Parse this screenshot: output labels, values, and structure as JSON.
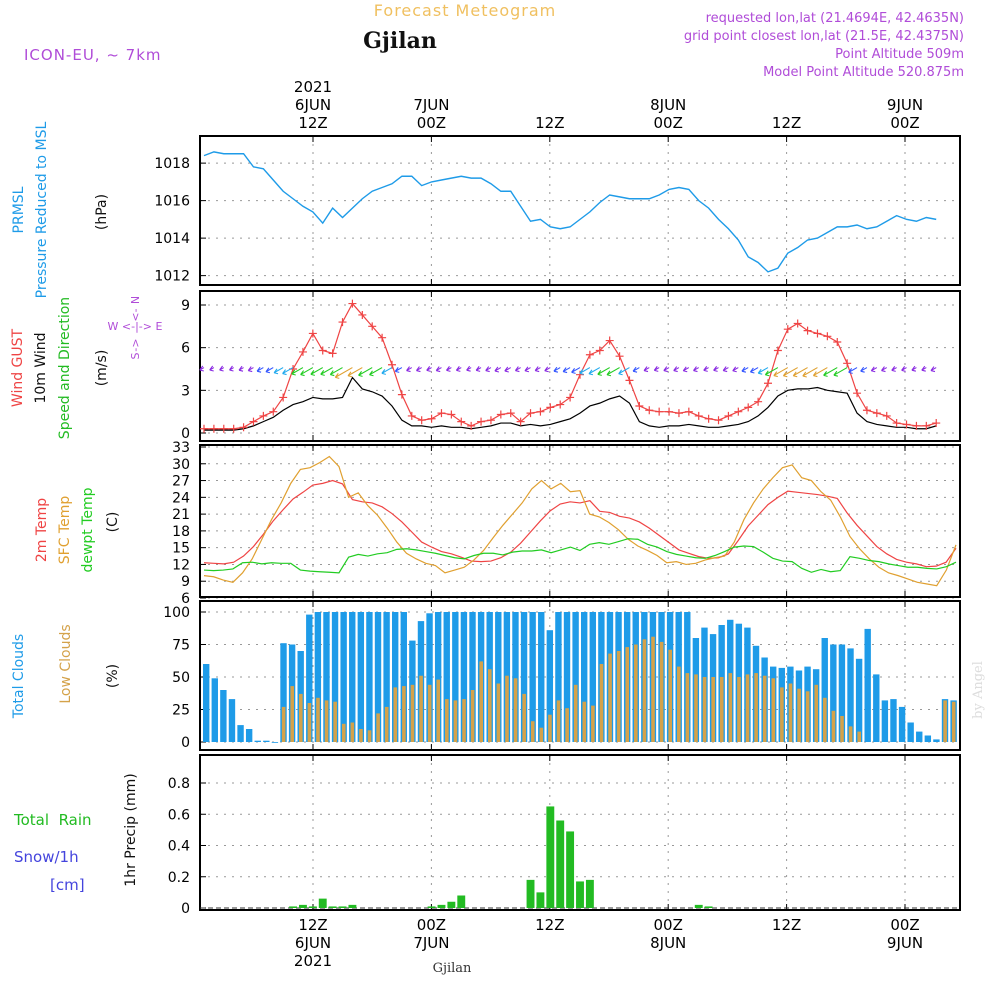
{
  "header": {
    "app_title": "Forecast Meteogram",
    "location": "Gjilan",
    "model": "ICON-EU, ~ 7km",
    "requested": "requested lon,lat (21.4694E, 42.4635N)",
    "grid_point": "grid point closest lon,lat (21.5E, 42.4375N)",
    "point_alt": "Point Altitude 509m",
    "model_alt": "Model Point Altitude 520.875m",
    "footer_location": "Gjilan",
    "watermark": "by Angel"
  },
  "colors": {
    "pressure": "#1e9be8",
    "gust": "#ef4444",
    "wind": "#000000",
    "wind_dir": "#22bb22",
    "temp2m": "#ef4444",
    "sfc": "#e0a030",
    "dewpt": "#22cc22",
    "total_clouds": "#1e9be8",
    "low_clouds": "#d4a24a",
    "rain": "#22bb22",
    "snow": "#4444dd",
    "header_purple": "#b04cd8",
    "title_orange": "#f0c060"
  },
  "time_axis": {
    "top_ticks": [
      {
        "i": 10,
        "l1": "2021",
        "l2": "6JUN",
        "l3": "12Z"
      },
      {
        "i": 22,
        "l1": "",
        "l2": "7JUN",
        "l3": "00Z"
      },
      {
        "i": 34,
        "l1": "",
        "l2": "",
        "l3": "12Z"
      },
      {
        "i": 46,
        "l1": "",
        "l2": "8JUN",
        "l3": "00Z"
      },
      {
        "i": 58,
        "l1": "",
        "l2": "",
        "l3": "12Z"
      },
      {
        "i": 70,
        "l1": "",
        "l2": "9JUN",
        "l3": "00Z"
      }
    ],
    "bottom_ticks": [
      {
        "i": 10,
        "l1": "12Z",
        "l2": "6JUN",
        "l3": "2021"
      },
      {
        "i": 22,
        "l1": "00Z",
        "l2": "7JUN",
        "l3": ""
      },
      {
        "i": 34,
        "l1": "12Z",
        "l2": "",
        "l3": ""
      },
      {
        "i": 46,
        "l1": "00Z",
        "l2": "8JUN",
        "l3": ""
      },
      {
        "i": 58,
        "l1": "12Z",
        "l2": "",
        "l3": ""
      },
      {
        "i": 70,
        "l1": "00Z",
        "l2": "9JUN",
        "l3": ""
      }
    ]
  },
  "panel_labels": {
    "pressure": {
      "l1": "PRMSL",
      "l2": "Pressure Reduced to MSL",
      "unit": "(hPa)"
    },
    "wind": {
      "gust": "Wind GUST",
      "wind": "10m Wind",
      "dir": "Speed and Direction",
      "unit": "(m/s)",
      "compass_n": "N",
      "compass_s": "S",
      "compass_we": "W <-|-> E",
      "compass_up": "<-",
      "compass_down": "->"
    },
    "temp": {
      "t2m": "2m Temp",
      "sfc": "SFC Temp",
      "dew": "dewpt Temp",
      "unit": "(C)"
    },
    "clouds": {
      "total": "Total Clouds",
      "low": "Low Clouds",
      "unit": "(%)"
    },
    "precip": {
      "rain_label": "Total  Rain",
      "snow_label": "Snow/1h",
      "snow_unit": "[cm]",
      "ylabel": "1hr Precip (mm)"
    }
  },
  "chart_data": [
    {
      "type": "line",
      "name": "pressure",
      "title": "PRMSL Pressure Reduced to MSL",
      "ylabel": "(hPa)",
      "ylim": [
        1011.5,
        1019.5
      ],
      "yticks": [
        1012,
        1014,
        1016,
        1018
      ],
      "x_start": "2021-06-06 00Z",
      "x_step_hours": 1,
      "series": [
        {
          "name": "PRMSL",
          "values": [
            1018.4,
            1018.6,
            1018.5,
            1018.5,
            1018.5,
            1017.8,
            1017.7,
            1017.1,
            1016.5,
            1016.1,
            1015.7,
            1015.4,
            1014.8,
            1015.6,
            1015.1,
            1015.6,
            1016.1,
            1016.5,
            1016.7,
            1016.9,
            1017.3,
            1017.3,
            1016.8,
            1017.0,
            1017.1,
            1017.2,
            1017.3,
            1017.2,
            1017.2,
            1016.9,
            1016.5,
            1016.5,
            1015.7,
            1014.9,
            1015.0,
            1014.6,
            1014.5,
            1014.6,
            1015.0,
            1015.4,
            1015.9,
            1016.3,
            1016.2,
            1016.1,
            1016.1,
            1016.1,
            1016.3,
            1016.6,
            1016.7,
            1016.6,
            1016.0,
            1015.6,
            1015.0,
            1014.5,
            1013.9,
            1013.0,
            1012.7,
            1012.2,
            1012.4,
            1013.2,
            1013.5,
            1013.9,
            1014.0,
            1014.3,
            1014.6,
            1014.6,
            1014.7,
            1014.5,
            1014.6,
            1014.9,
            1015.2,
            1015.0,
            1014.9,
            1015.1,
            1015.0
          ]
        }
      ]
    },
    {
      "type": "line",
      "name": "wind",
      "title": "Wind GUST / 10m Wind Speed and Direction",
      "ylabel": "(m/s)",
      "ylim": [
        0,
        10
      ],
      "yticks": [
        0,
        3,
        6,
        9
      ],
      "series": [
        {
          "name": "Wind GUST",
          "values": [
            0.3,
            0.3,
            0.3,
            0.3,
            0.4,
            0.8,
            1.2,
            1.5,
            2.5,
            4.5,
            5.7,
            7.0,
            5.8,
            5.6,
            7.8,
            9.1,
            8.3,
            7.5,
            6.7,
            4.8,
            2.7,
            1.2,
            0.9,
            1.0,
            1.4,
            1.3,
            0.8,
            0.5,
            0.8,
            0.9,
            1.3,
            1.4,
            0.8,
            1.4,
            1.5,
            1.8,
            2.0,
            2.5,
            4.1,
            5.5,
            5.8,
            6.5,
            5.4,
            3.7,
            1.9,
            1.6,
            1.5,
            1.5,
            1.4,
            1.5,
            1.2,
            1.0,
            0.9,
            1.2,
            1.5,
            1.8,
            2.2,
            3.5,
            5.8,
            7.3,
            7.7,
            7.2,
            7.0,
            6.8,
            6.4,
            4.9,
            2.8,
            1.6,
            1.4,
            1.2,
            0.7,
            0.6,
            0.5,
            0.5,
            0.7
          ]
        },
        {
          "name": "10m Wind",
          "values": [
            0.2,
            0.2,
            0.2,
            0.2,
            0.3,
            0.5,
            0.8,
            1.1,
            1.6,
            2.0,
            2.2,
            2.5,
            2.4,
            2.4,
            2.5,
            3.9,
            3.1,
            2.9,
            2.6,
            1.9,
            0.9,
            0.5,
            0.5,
            0.4,
            0.5,
            0.4,
            0.4,
            0.3,
            0.4,
            0.5,
            0.7,
            0.7,
            0.5,
            0.6,
            0.5,
            0.6,
            0.8,
            1.0,
            1.4,
            1.9,
            2.1,
            2.4,
            2.6,
            2.1,
            0.8,
            0.5,
            0.4,
            0.5,
            0.5,
            0.6,
            0.5,
            0.4,
            0.4,
            0.5,
            0.6,
            0.8,
            1.2,
            1.8,
            2.6,
            3.0,
            3.1,
            3.1,
            3.2,
            3.0,
            2.9,
            2.8,
            1.4,
            0.8,
            0.6,
            0.5,
            0.4,
            0.4,
            0.3,
            0.3,
            0.5
          ]
        }
      ]
    },
    {
      "type": "line",
      "name": "temperature",
      "title": "2m Temp / SFC Temp / dewpt Temp",
      "ylabel": "(C)",
      "ylim": [
        6,
        33
      ],
      "yticks": [
        6,
        9,
        12,
        15,
        18,
        21,
        24,
        27,
        30,
        33
      ],
      "series": [
        {
          "name": "2m Temp",
          "values": [
            12.3,
            12.2,
            12.1,
            12.4,
            13.5,
            15.2,
            17.4,
            19.8,
            21.8,
            23.7,
            24.9,
            26.2,
            26.5,
            27.0,
            26.4,
            23.6,
            23.2,
            23.0,
            22.3,
            21.1,
            19.6,
            17.8,
            16.0,
            15.1,
            14.3,
            13.9,
            13.3,
            12.6,
            12.5,
            12.6,
            13.2,
            14.2,
            15.8,
            17.8,
            19.8,
            21.6,
            22.8,
            23.2,
            23.0,
            23.4,
            21.5,
            21.3,
            20.6,
            20.3,
            19.6,
            18.5,
            17.2,
            15.9,
            14.6,
            14.0,
            13.4,
            13.1,
            13.2,
            13.9,
            16.3,
            18.9,
            20.8,
            22.7,
            24.0,
            25.1,
            24.9,
            24.7,
            24.5,
            24.2,
            23.8,
            21.2,
            19.0,
            17.1,
            15.2,
            13.9,
            12.9,
            12.4,
            12.1,
            11.6,
            11.7,
            12.4,
            14.9
          ]
        },
        {
          "name": "SFC Temp",
          "values": [
            10.0,
            9.8,
            9.2,
            8.8,
            10.5,
            13.0,
            16.5,
            20.0,
            23.0,
            26.5,
            29.0,
            29.3,
            30.2,
            31.3,
            29.5,
            24.0,
            24.8,
            22.5,
            20.8,
            18.5,
            16.0,
            14.0,
            13.0,
            12.2,
            11.8,
            10.5,
            11.0,
            11.5,
            12.8,
            14.5,
            16.8,
            19.0,
            21.0,
            23.0,
            25.5,
            27.0,
            25.5,
            26.5,
            25.0,
            25.2,
            21.0,
            20.5,
            19.5,
            18.2,
            16.5,
            15.3,
            14.5,
            13.6,
            12.3,
            12.5,
            12.0,
            12.2,
            12.8,
            13.2,
            13.5,
            16.0,
            20.0,
            23.0,
            25.5,
            27.5,
            29.3,
            29.8,
            27.5,
            27.0,
            25.0,
            23.5,
            20.5,
            17.0,
            14.8,
            13.0,
            11.5,
            10.5,
            10.0,
            9.4,
            8.8,
            8.5,
            8.2,
            11.0,
            15.5
          ]
        },
        {
          "name": "dewpt Temp",
          "values": [
            11.0,
            10.9,
            11.0,
            11.2,
            12.3,
            12.4,
            12.1,
            12.3,
            12.2,
            12.2,
            11.0,
            10.8,
            10.7,
            10.6,
            10.5,
            13.3,
            13.8,
            13.5,
            13.9,
            14.1,
            14.7,
            14.8,
            14.6,
            14.3,
            14.0,
            13.6,
            13.2,
            13.0,
            13.6,
            14.0,
            14.0,
            13.7,
            14.2,
            14.4,
            14.4,
            14.6,
            14.1,
            14.6,
            15.1,
            14.5,
            15.6,
            15.9,
            15.6,
            16.1,
            16.6,
            16.5,
            15.6,
            15.1,
            14.3,
            13.8,
            13.5,
            13.2,
            13.1,
            13.6,
            14.3,
            15.1,
            15.3,
            15.2,
            14.2,
            13.1,
            12.6,
            12.5,
            11.3,
            10.6,
            11.1,
            10.7,
            10.9,
            13.4,
            13.1,
            12.7,
            12.5,
            12.1,
            11.8,
            11.5,
            11.5,
            11.3,
            11.2,
            11.6,
            12.4
          ]
        }
      ]
    },
    {
      "type": "bar",
      "name": "clouds",
      "title": "Total Clouds / Low Clouds",
      "ylabel": "(%)",
      "ylim": [
        0,
        100
      ],
      "yticks": [
        0,
        25,
        50,
        75,
        100
      ],
      "series": [
        {
          "name": "Total Clouds",
          "values": [
            60,
            49,
            40,
            33,
            13,
            10,
            1,
            1,
            0,
            76,
            75,
            70,
            98,
            100,
            100,
            100,
            100,
            100,
            100,
            100,
            100,
            100,
            100,
            100,
            78,
            93,
            99,
            100,
            100,
            100,
            100,
            100,
            100,
            100,
            100,
            100,
            100,
            100,
            100,
            100,
            86,
            100,
            100,
            100,
            100,
            100,
            100,
            100,
            100,
            100,
            100,
            100,
            100,
            100,
            100,
            100,
            100,
            80,
            88,
            83,
            90,
            94,
            91,
            88,
            74,
            65,
            58,
            57,
            58,
            55,
            58,
            56,
            80,
            75,
            75,
            72,
            64,
            87,
            52,
            32,
            33,
            27,
            15,
            8,
            5,
            2,
            33,
            32
          ]
        },
        {
          "name": "Low Clouds",
          "values": [
            0,
            0,
            0,
            0,
            0,
            0,
            0,
            0,
            0,
            27,
            43,
            37,
            30,
            34,
            32,
            31,
            14,
            15,
            10,
            9,
            22,
            27,
            42,
            43,
            44,
            51,
            44,
            48,
            33,
            32,
            33,
            40,
            62,
            56,
            45,
            51,
            49,
            37,
            16,
            11,
            21,
            32,
            26,
            44,
            31,
            28,
            60,
            68,
            70,
            73,
            75,
            79,
            81,
            77,
            71,
            58,
            53,
            52,
            50,
            50,
            50,
            53,
            50,
            52,
            53,
            51,
            49,
            42,
            45,
            41,
            39,
            44,
            34,
            24,
            20,
            12,
            8,
            0,
            0,
            0,
            0,
            0,
            0,
            0,
            0,
            0,
            32,
            31
          ]
        }
      ]
    },
    {
      "type": "bar",
      "name": "precip",
      "title": "1hr Precip",
      "ylabel": "1hr Precip (mm)",
      "ylim": [
        0,
        0.95
      ],
      "yticks": [
        0,
        0.2,
        0.4,
        0.6,
        0.8
      ],
      "series": [
        {
          "name": "Total Rain",
          "values": [
            0,
            0,
            0,
            0,
            0,
            0,
            0,
            0,
            0,
            0.01,
            0.02,
            0.01,
            0.06,
            0.01,
            0.01,
            0.02,
            0,
            0,
            0,
            0,
            0,
            0,
            0,
            0.01,
            0.02,
            0.04,
            0.08,
            0,
            0,
            0,
            0,
            0,
            0,
            0.18,
            0.1,
            0.65,
            0.56,
            0.49,
            0.17,
            0.18,
            0,
            0,
            0,
            0,
            0,
            0,
            0,
            0,
            0,
            0,
            0.02,
            0.01,
            0,
            0,
            0,
            0,
            0,
            0,
            0,
            0,
            0,
            0,
            0,
            0,
            0,
            0,
            0,
            0,
            0,
            0,
            0,
            0,
            0,
            0,
            0,
            0,
            0
          ]
        },
        {
          "name": "Snow/1h",
          "values": [
            0,
            0,
            0,
            0,
            0,
            0,
            0,
            0,
            0,
            0,
            0,
            0,
            0,
            0,
            0,
            0,
            0,
            0,
            0,
            0,
            0,
            0,
            0,
            0,
            0,
            0,
            0,
            0,
            0,
            0,
            0,
            0,
            0,
            0,
            0,
            0,
            0,
            0,
            0,
            0,
            0,
            0,
            0,
            0,
            0,
            0,
            0,
            0,
            0,
            0,
            0,
            0,
            0,
            0,
            0,
            0,
            0,
            0,
            0,
            0,
            0,
            0,
            0,
            0,
            0,
            0,
            0,
            0,
            0,
            0,
            0,
            0,
            0,
            0,
            0,
            0,
            0
          ]
        }
      ]
    }
  ]
}
